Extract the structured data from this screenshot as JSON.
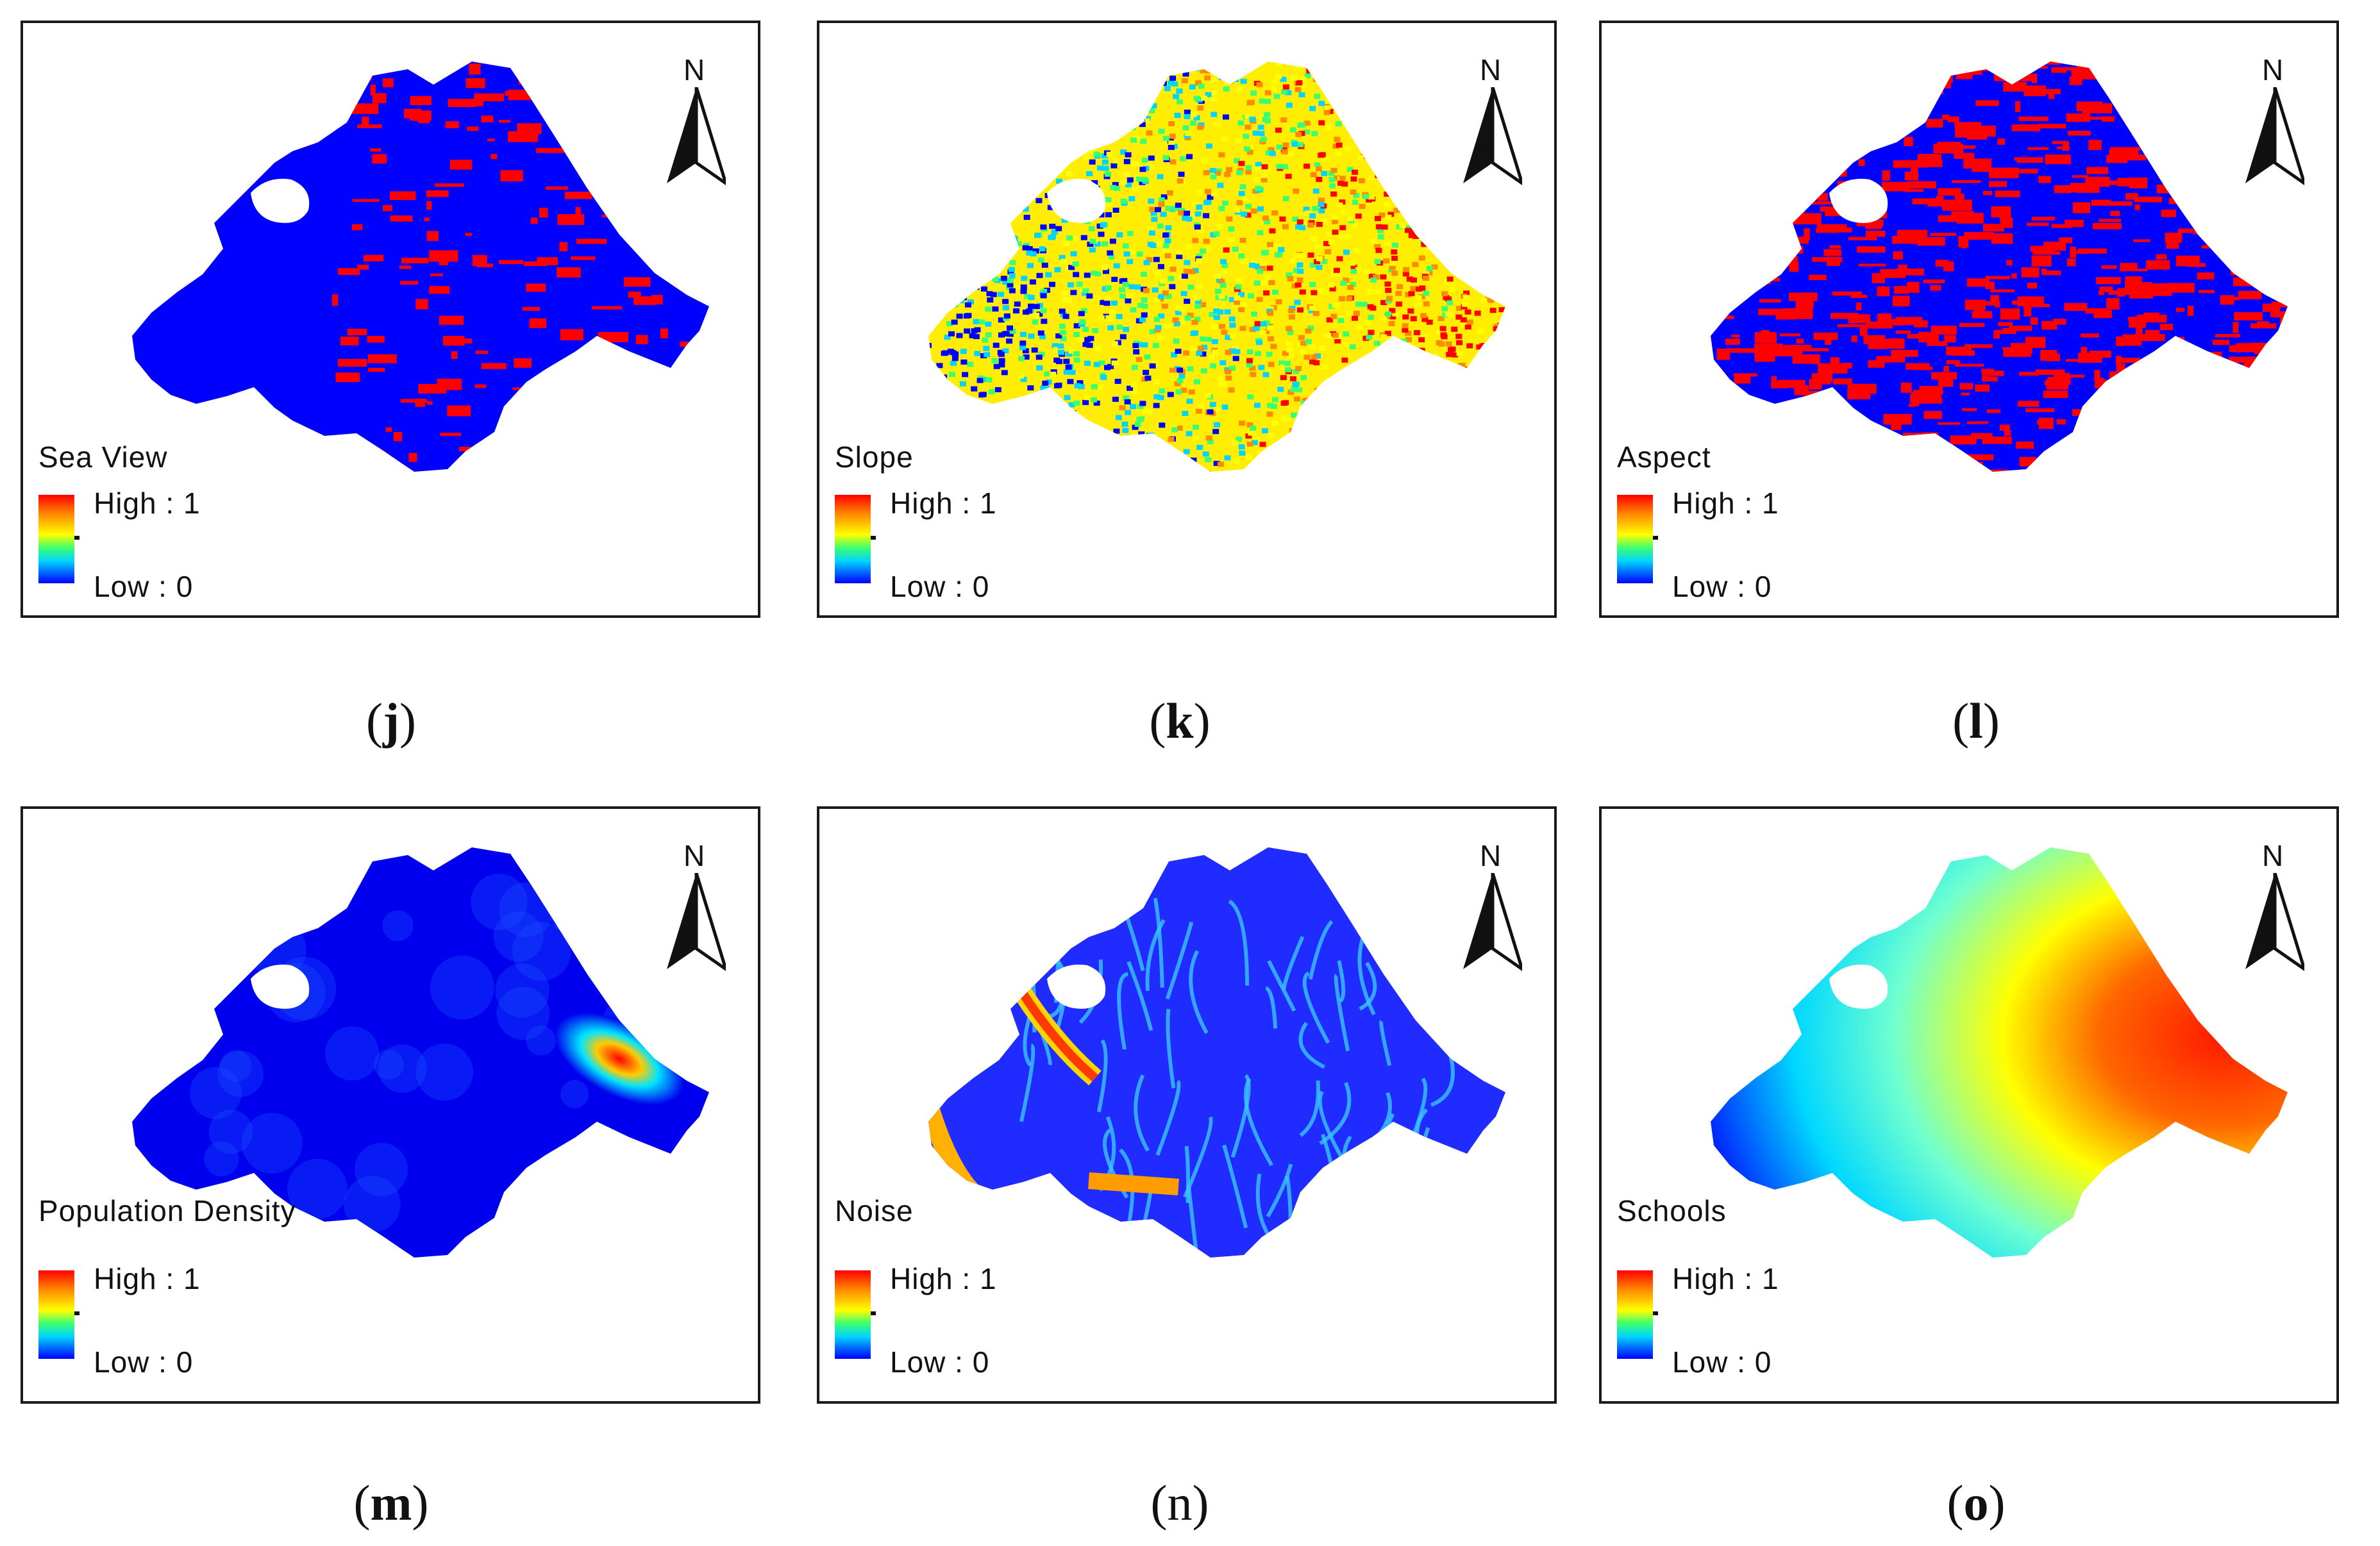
{
  "panels": [
    {
      "id": "j",
      "layer": "Sea View",
      "high": "High : 1",
      "low": "Low : 0",
      "north": "N",
      "caption_letter": "j",
      "letter_bold": true,
      "render": "binary",
      "density": 0.18
    },
    {
      "id": "k",
      "layer": "Slope",
      "high": "High : 1",
      "low": "Low : 0",
      "north": "N",
      "caption_letter": "k",
      "letter_bold": true,
      "render": "noise"
    },
    {
      "id": "l",
      "layer": "Aspect",
      "high": "High : 1",
      "low": "Low : 0",
      "north": "N",
      "caption_letter": "l",
      "letter_bold": true,
      "render": "binary",
      "density": 0.5
    },
    {
      "id": "m",
      "layer": "Population Density",
      "high": "High : 1",
      "low": "Low : 0",
      "north": "N",
      "caption_letter": "m",
      "letter_bold": true,
      "render": "hotspot"
    },
    {
      "id": "n",
      "layer": "Noise",
      "high": "High : 1",
      "low": "Low : 0",
      "north": "N",
      "caption_letter": "n",
      "letter_bold": false,
      "render": "network"
    },
    {
      "id": "o",
      "layer": "Schools",
      "high": "High : 1",
      "low": "Low : 0",
      "north": "N",
      "caption_letter": "o",
      "letter_bold": true,
      "render": "radial"
    }
  ],
  "colors": {
    "high": "#ff0000",
    "low": "#0000ff",
    "ramp": [
      "#0000ff",
      "#00d4ff",
      "#3cff70",
      "#ffff00",
      "#ff8a00",
      "#ff0000"
    ]
  }
}
